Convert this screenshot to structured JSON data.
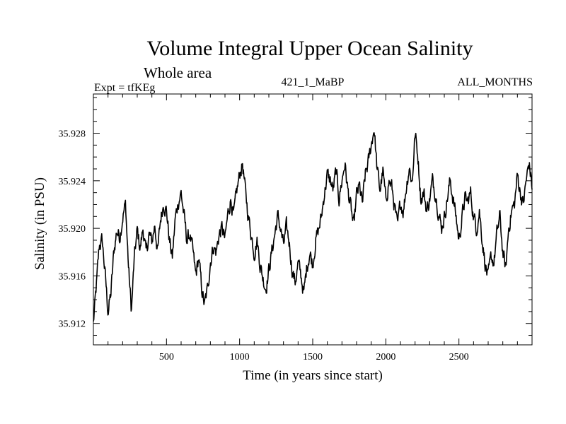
{
  "header": {
    "title": "Volume Integral Upper Ocean Salinity",
    "subtitle": "Whole area",
    "expt": "Expt = tfKEg",
    "center_label": "421_1_MaBP",
    "months_label": "ALL_MONTHS"
  },
  "chart_data": {
    "type": "line",
    "title": "Volume Integral Upper Ocean Salinity",
    "subtitle": "Whole area",
    "xlabel": "Time (in years since start)",
    "ylabel": "Salinity (in PSU)",
    "xlim": [
      0,
      3000
    ],
    "ylim": [
      35.9102,
      35.9313
    ],
    "xticks": [
      500,
      1000,
      1500,
      2000,
      2500
    ],
    "yticks": [
      35.912,
      35.916,
      35.92,
      35.924,
      35.928
    ],
    "ytick_labels": [
      "35.912",
      "35.916",
      "35.920",
      "35.924",
      "35.928"
    ],
    "grid": false,
    "color": "#000000",
    "series": [
      {
        "x": [
          0,
          20,
          40,
          60,
          80,
          100,
          120,
          140,
          160,
          180,
          200,
          220,
          240,
          260,
          280,
          300,
          320,
          340,
          360,
          380,
          400,
          420,
          440,
          460,
          480,
          500,
          520,
          540,
          560,
          580,
          600,
          620,
          640,
          660,
          680,
          700,
          720,
          740,
          760,
          780,
          800,
          820,
          840,
          860,
          880,
          900,
          920,
          940,
          960,
          980,
          1000,
          1020,
          1040,
          1060,
          1080,
          1100,
          1120,
          1140,
          1160,
          1180,
          1200,
          1220,
          1240,
          1260,
          1280,
          1300,
          1320,
          1340,
          1360,
          1380,
          1400,
          1420,
          1440,
          1460,
          1480,
          1500,
          1520,
          1540,
          1560,
          1580,
          1600,
          1620,
          1640,
          1660,
          1680,
          1700,
          1720,
          1740,
          1760,
          1780,
          1800,
          1820,
          1840,
          1860,
          1880,
          1900,
          1920,
          1940,
          1960,
          1980,
          2000,
          2020,
          2040,
          2060,
          2080,
          2100,
          2120,
          2140,
          2160,
          2180,
          2200,
          2220,
          2240,
          2260,
          2280,
          2300,
          2320,
          2340,
          2360,
          2380,
          2400,
          2420,
          2440,
          2460,
          2480,
          2500,
          2520,
          2540,
          2560,
          2580,
          2600,
          2620,
          2640,
          2660,
          2680,
          2700,
          2720,
          2740,
          2760,
          2780,
          2800,
          2820,
          2840,
          2860,
          2880,
          2900,
          2920,
          2940,
          2960,
          2980,
          3000
        ],
        "values": [
          35.912,
          35.915,
          35.9185,
          35.919,
          35.9162,
          35.913,
          35.9145,
          35.918,
          35.9198,
          35.9193,
          35.921,
          35.922,
          35.9168,
          35.913,
          35.9175,
          35.9198,
          35.9183,
          35.92,
          35.9178,
          35.9195,
          35.9188,
          35.9203,
          35.918,
          35.9208,
          35.9222,
          35.9215,
          35.919,
          35.9175,
          35.9208,
          35.9222,
          35.923,
          35.921,
          35.919,
          35.9195,
          35.918,
          35.916,
          35.9175,
          35.915,
          35.9135,
          35.9148,
          35.9172,
          35.9185,
          35.918,
          35.9195,
          35.92,
          35.919,
          35.9212,
          35.9225,
          35.921,
          35.923,
          35.9245,
          35.9255,
          35.923,
          35.921,
          35.9195,
          35.918,
          35.919,
          35.917,
          35.9158,
          35.915,
          35.9165,
          35.918,
          35.9195,
          35.921,
          35.92,
          35.9185,
          35.92,
          35.9188,
          35.9165,
          35.9155,
          35.917,
          35.916,
          35.9145,
          35.9168,
          35.918,
          35.917,
          35.919,
          35.9198,
          35.921,
          35.923,
          35.9245,
          35.924,
          35.9232,
          35.9248,
          35.9225,
          35.924,
          35.9255,
          35.9232,
          35.9218,
          35.92,
          35.9228,
          35.9235,
          35.922,
          35.9245,
          35.9255,
          35.927,
          35.9285,
          35.925,
          35.9232,
          35.9248,
          35.9222,
          35.924,
          35.9235,
          35.9218,
          35.92,
          35.9222,
          35.9215,
          35.9235,
          35.9252,
          35.9238,
          35.928,
          35.926,
          35.9225,
          35.923,
          35.9215,
          35.9225,
          35.924,
          35.923,
          35.9215,
          35.92,
          35.921,
          35.9225,
          35.924,
          35.9225,
          35.921,
          35.919,
          35.9208,
          35.9225,
          35.9222,
          35.923,
          35.921,
          35.92,
          35.9215,
          35.919,
          35.917,
          35.9158,
          35.9175,
          35.9172,
          35.9195,
          35.921,
          35.918,
          35.9165,
          35.92,
          35.9215,
          35.922,
          35.9245,
          35.923,
          35.922,
          35.924,
          35.9255,
          35.9235
        ]
      }
    ]
  }
}
